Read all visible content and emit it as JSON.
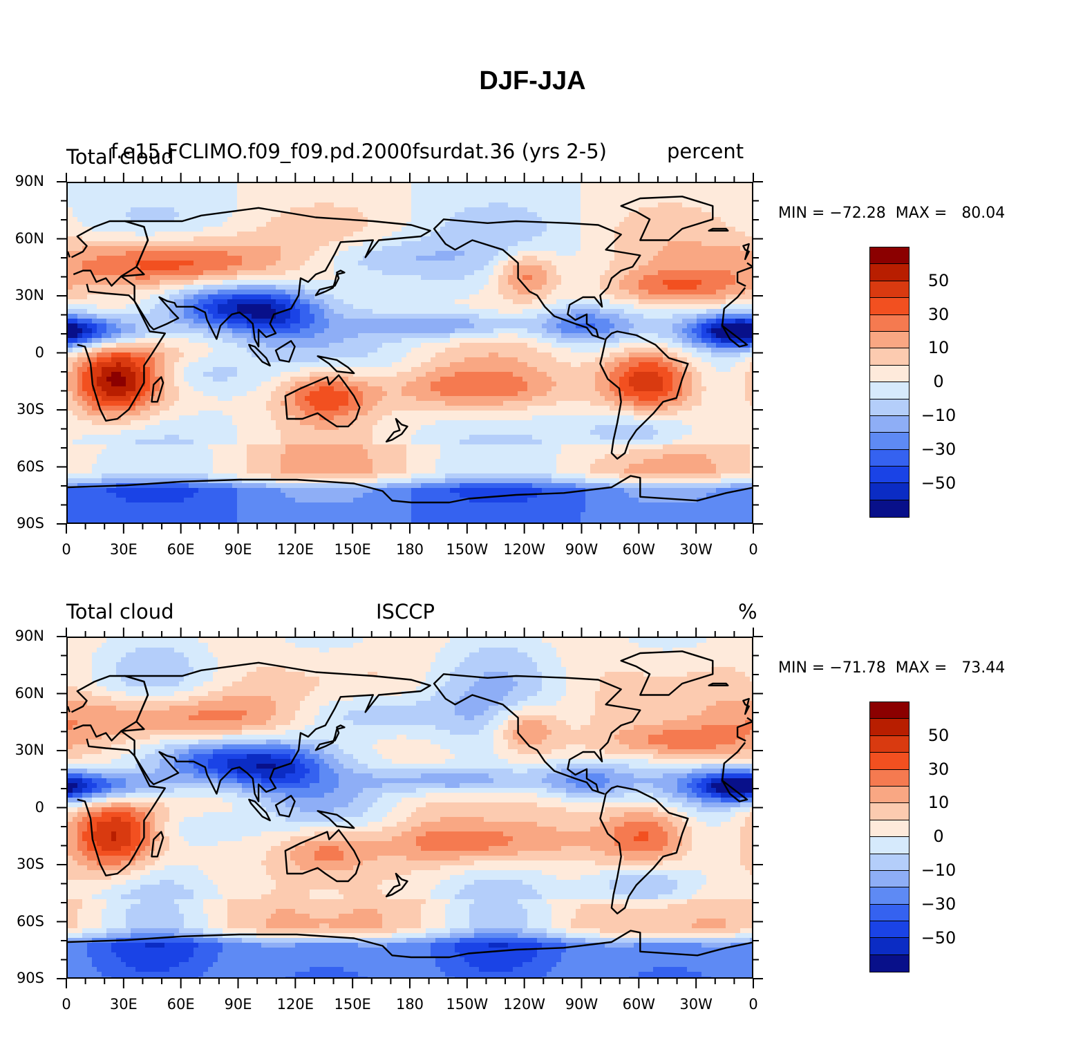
{
  "title": "DJF-JJA",
  "panels": [
    {
      "left_label": "Total cloud",
      "center_label": "f.e15.FCLIMO.f09_f09.pd.2000fsurdat.36 (yrs 2-5)",
      "right_label": "percent",
      "min_label": "MIN = ",
      "min_value": "−72.28",
      "max_label": "MAX = ",
      "max_value": "80.04",
      "land_bias": 1.15
    },
    {
      "left_label": "Total cloud",
      "center_label": "ISCCP",
      "right_label": "%",
      "min_label": "MIN = ",
      "min_value": "−71.78",
      "max_label": "MAX = ",
      "max_value": "73.44",
      "land_bias": 0.95
    }
  ],
  "lat_ticks": [
    "90N",
    "60N",
    "30N",
    "0",
    "30S",
    "60S",
    "90S"
  ],
  "lon_ticks": [
    "0",
    "30E",
    "60E",
    "90E",
    "120E",
    "150E",
    "180",
    "150W",
    "120W",
    "90W",
    "60W",
    "30W",
    "0"
  ],
  "colorbar": {
    "colors": [
      "#8b0000",
      "#b81e00",
      "#d93a10",
      "#f25020",
      "#f57a50",
      "#f9a783",
      "#fccbb0",
      "#feeadb",
      "#d6eafc",
      "#b4cefa",
      "#8eaef6",
      "#5e8af4",
      "#3562f0",
      "#1a43e6",
      "#0b2cc4",
      "#08108a"
    ],
    "labels": [
      "50",
      "30",
      "10",
      "0",
      "−10",
      "−30",
      "−50"
    ]
  }
}
